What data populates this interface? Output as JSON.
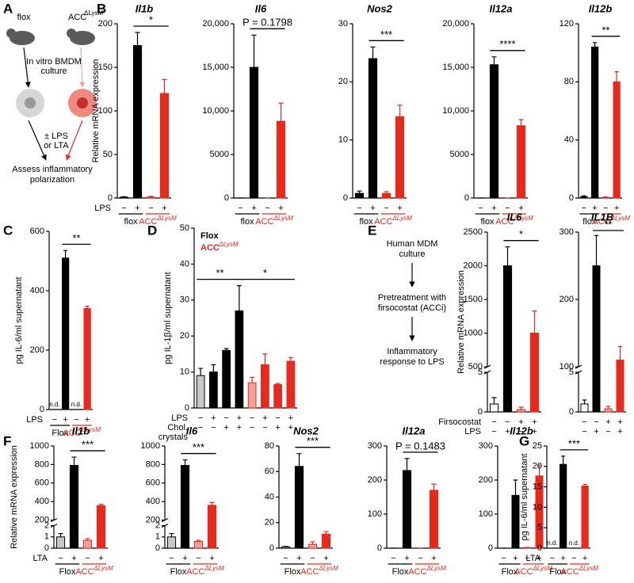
{
  "panel_labels": [
    "A",
    "B",
    "C",
    "D",
    "E",
    "F",
    "G"
  ],
  "diagram_a": {
    "left_label": "flox",
    "right_label": "ACC",
    "right_label_sup": "ΔLysM",
    "step1": [
      "In vitro BMDM",
      "culture"
    ],
    "step2": [
      "± LPS",
      "or LTA"
    ],
    "result": [
      "Assess inflammatory",
      "polarization"
    ]
  },
  "diagram_e": {
    "steps": [
      [
        "Human MDM",
        "culture"
      ],
      [
        "Pretreatment with",
        "firsocostat (ACCi)"
      ],
      [
        "Inflammatory",
        "response to LPS"
      ]
    ]
  },
  "chart_data": [
    {
      "type": "bar",
      "title": "Il1b",
      "ylabel": "Relative mRNA expression",
      "ylim": [
        0,
        200
      ],
      "yticks": [
        0,
        50,
        100,
        150,
        200
      ],
      "rows": [
        {
          "label": "LPS",
          "levels": [
            "−",
            "+",
            "−",
            "+"
          ]
        }
      ],
      "series": [
        {
          "name": "flox",
          "color": "#000000",
          "fills": [
            "#000000",
            "#000000"
          ],
          "values": [
            1,
            175
          ],
          "errors": [
            0.5,
            15
          ]
        },
        {
          "name": "ACC",
          "name_sup": "ΔLysM",
          "color": "#e8291c",
          "fills": [
            "#e8291c",
            "#e8291c"
          ],
          "values": [
            1,
            120
          ],
          "errors": [
            1,
            16
          ]
        }
      ],
      "annotations": [
        "*"
      ]
    },
    {
      "type": "bar",
      "title": "Il6",
      "ylim": [
        0,
        20000
      ],
      "yticks": [
        0,
        5000,
        {
          "value": 10000,
          "label": "10,000"
        },
        {
          "value": 15000,
          "label": "15,000"
        },
        {
          "value": 20000,
          "label": "20,000"
        }
      ],
      "rows": [
        {
          "levels": [
            "−",
            "+",
            "−",
            "+"
          ]
        }
      ],
      "series": [
        {
          "name": "flox",
          "color": "#000000",
          "fills": [
            "#000000",
            "#000000"
          ],
          "values": [
            0,
            15000
          ],
          "errors": [
            0,
            3700
          ]
        },
        {
          "name": "ACC",
          "name_sup": "ΔLysM",
          "color": "#e8291c",
          "fills": [
            "#e8291c",
            "#e8291c"
          ],
          "values": [
            0,
            8800
          ],
          "errors": [
            0,
            2100
          ]
        }
      ],
      "annotations": [
        "P = 0.1798"
      ]
    },
    {
      "type": "bar",
      "title": "Nos2",
      "ylim": [
        0,
        30
      ],
      "yticks": [
        0,
        10,
        20,
        30
      ],
      "rows": [
        {
          "levels": [
            "−",
            "+",
            "−",
            "+"
          ]
        }
      ],
      "series": [
        {
          "name": "flox",
          "color": "#000000",
          "fills": [
            "#000000",
            "#000000"
          ],
          "values": [
            0.8,
            24
          ],
          "errors": [
            0.4,
            2
          ]
        },
        {
          "name": "ACC",
          "name_sup": "ΔLysM",
          "color": "#e8291c",
          "fills": [
            "#e8291c",
            "#e8291c"
          ],
          "values": [
            0.8,
            14
          ],
          "errors": [
            0.3,
            2
          ]
        }
      ],
      "annotations": [
        "***"
      ]
    },
    {
      "type": "bar",
      "title": "Il12a",
      "ylim": [
        0,
        20000
      ],
      "yticks": [
        0,
        5000,
        {
          "value": 10000,
          "label": "10,000"
        },
        {
          "value": 15000,
          "label": "15,000"
        },
        {
          "value": 20000,
          "label": "20,000"
        }
      ],
      "rows": [
        {
          "levels": [
            "−",
            "+",
            "−",
            "+"
          ]
        }
      ],
      "series": [
        {
          "name": "flox",
          "color": "#000000",
          "fills": [
            "#000000",
            "#000000"
          ],
          "values": [
            0,
            15300
          ],
          "errors": [
            0,
            900
          ]
        },
        {
          "name": "ACC",
          "name_sup": "ΔLysM",
          "color": "#e8291c",
          "fills": [
            "#e8291c",
            "#e8291c"
          ],
          "values": [
            0,
            8300
          ],
          "errors": [
            0,
            700
          ]
        }
      ],
      "annotations": [
        "****"
      ]
    },
    {
      "type": "bar",
      "title": "Il12b",
      "ylim": [
        0,
        120
      ],
      "yticks": [
        0,
        40,
        80,
        120
      ],
      "rows": [
        {
          "levels": [
            "−",
            "+",
            "−",
            "+"
          ]
        }
      ],
      "series": [
        {
          "name": "flox",
          "color": "#000000",
          "fills": [
            "#000000",
            "#000000"
          ],
          "values": [
            1,
            104
          ],
          "errors": [
            0.5,
            3
          ]
        },
        {
          "name": "ACC",
          "name_sup": "ΔLysM",
          "color": "#e8291c",
          "fills": [
            "#e8291c",
            "#e8291c"
          ],
          "values": [
            0.5,
            80
          ],
          "errors": [
            0.3,
            7
          ]
        }
      ],
      "annotations": [
        "**"
      ]
    },
    {
      "type": "bar",
      "ylabel": "pg IL-6/ml supernatant",
      "ylim": [
        0,
        600
      ],
      "yticks": [
        0,
        200,
        400,
        600
      ],
      "rows": [
        {
          "label": "LPS",
          "levels": [
            "−",
            "+",
            "−",
            "+"
          ]
        }
      ],
      "series": [
        {
          "name": "Flox",
          "color": "#000000",
          "fills": [
            "#000000",
            "#000000"
          ],
          "values": [
            null,
            510
          ],
          "errors": [
            null,
            25
          ],
          "value_labels": [
            "n.d.",
            null
          ]
        },
        {
          "name": "ACC",
          "name_sup": "ΔLysM",
          "color": "#e8291c",
          "fills": [
            "#e8291c",
            "#e8291c"
          ],
          "values": [
            null,
            340
          ],
          "errors": [
            null,
            8
          ],
          "value_labels": [
            "n.d.",
            null
          ]
        }
      ],
      "annotations": [
        "**"
      ]
    },
    {
      "type": "bar",
      "ylabel": "pg IL-1β/ml supernatant",
      "ylim": [
        0,
        50
      ],
      "yticks": [
        0,
        10,
        20,
        30,
        40,
        50
      ],
      "legend": "upper left",
      "rows": [
        {
          "label": "LPS",
          "levels": [
            "−",
            "+",
            "−",
            "+",
            "−",
            "+",
            "−",
            "+"
          ]
        },
        {
          "label": [
            "Chol.",
            "crystals"
          ],
          "levels": [
            "−",
            "−",
            "+",
            "+",
            "−",
            "−",
            "+",
            "+"
          ]
        }
      ],
      "series": [
        {
          "name": "Flox",
          "color": "#000000",
          "fills": [
            "#c8c8c8",
            "#000000",
            "#000000",
            "#000000"
          ],
          "values": [
            9,
            10,
            16,
            27
          ],
          "errors": [
            2,
            2,
            0.5,
            7
          ]
        },
        {
          "name": "ACC",
          "name_sup": "ΔLysM",
          "color": "#e8291c",
          "fills": [
            "#f4a09a",
            "#e8291c",
            "#e8291c",
            "#e8291c"
          ],
          "values": [
            7,
            12,
            6.5,
            13
          ],
          "errors": [
            1.5,
            3,
            0.3,
            1
          ]
        }
      ],
      "annotations": [
        "**",
        "*"
      ]
    },
    {
      "type": "bar",
      "title": "IL6",
      "ylabel": "Relative mRNA expression",
      "axis_segments": [
        {
          "ylim": [
            0,
            5
          ],
          "yticks": [
            0,
            5
          ]
        },
        {
          "ylim": [
            500,
            2500
          ],
          "yticks": [
            500,
            1000,
            1500,
            2000,
            2500
          ]
        }
      ],
      "rows": [
        {
          "label": "Firsocostat",
          "levels": [
            "−",
            "−",
            "+",
            "+"
          ]
        },
        {
          "label": "LPS",
          "levels": [
            "−",
            "+",
            "−",
            "+"
          ]
        }
      ],
      "series": [
        {
          "color": "#000000",
          "fills": [
            "#ffffff",
            "#000000"
          ],
          "values": [
            1,
            2000
          ],
          "errors": [
            0.8,
            280
          ]
        },
        {
          "color": "#e8291c",
          "fills": [
            "#f4a09a",
            "#e8291c"
          ],
          "values": [
            0.3,
            1000
          ],
          "errors": [
            0.3,
            330
          ]
        }
      ],
      "annotations": [
        "*"
      ]
    },
    {
      "type": "bar",
      "title": "IL1B",
      "axis_segments": [
        {
          "ylim": [
            0,
            5
          ],
          "yticks": [
            0,
            5
          ]
        },
        {
          "ylim": [
            100,
            300
          ],
          "yticks": [
            100,
            200,
            300
          ]
        }
      ],
      "rows": [
        {
          "levels": [
            "−",
            "−",
            "+",
            "+"
          ]
        },
        {
          "levels": [
            "−",
            "+",
            "−",
            "+"
          ]
        }
      ],
      "series": [
        {
          "color": "#000000",
          "fills": [
            "#ffffff",
            "#000000"
          ],
          "values": [
            1,
            250
          ],
          "errors": [
            0.5,
            45
          ]
        },
        {
          "color": "#e8291c",
          "fills": [
            "#f4a09a",
            "#e8291c"
          ],
          "values": [
            0.4,
            110
          ],
          "errors": [
            0.3,
            20
          ]
        }
      ],
      "annotations": [
        "**"
      ]
    },
    {
      "type": "bar",
      "title": "Il1b",
      "ylabel": "Relative mRNA expression",
      "axis_segments": [
        {
          "ylim": [
            0,
            2
          ],
          "yticks": [
            0,
            1,
            2
          ]
        },
        {
          "ylim": [
            200,
            1000
          ],
          "yticks": [
            200,
            400,
            600,
            800,
            1000
          ]
        }
      ],
      "rows": [
        {
          "label": "LTA",
          "levels": [
            "−",
            "+",
            "−",
            "+"
          ]
        }
      ],
      "series": [
        {
          "name": "Flox",
          "color": "#000000",
          "fills": [
            "#c8c8c8",
            "#000000"
          ],
          "values": [
            1,
            790
          ],
          "errors": [
            0.3,
            90
          ]
        },
        {
          "name": "ACC",
          "name_sup": "ΔLysM",
          "color": "#e8291c",
          "fills": [
            "#f4a09a",
            "#e8291c"
          ],
          "values": [
            0.7,
            355
          ],
          "errors": [
            0.15,
            15
          ]
        }
      ],
      "annotations": [
        "***"
      ]
    },
    {
      "type": "bar",
      "title": "Il6",
      "axis_segments": [
        {
          "ylim": [
            0,
            2
          ],
          "yticks": [
            0,
            1,
            2
          ]
        },
        {
          "ylim": [
            200,
            1000
          ],
          "yticks": [
            200,
            400,
            600,
            800,
            1000
          ]
        }
      ],
      "rows": [
        {
          "levels": [
            "−",
            "+",
            "−",
            "+"
          ]
        }
      ],
      "series": [
        {
          "name": "Flox",
          "color": "#000000",
          "fills": [
            "#c8c8c8",
            "#000000"
          ],
          "values": [
            1,
            790
          ],
          "errors": [
            0.3,
            60
          ]
        },
        {
          "name": "ACC",
          "name_sup": "ΔLysM",
          "color": "#e8291c",
          "fills": [
            "#f4a09a",
            "#e8291c"
          ],
          "values": [
            0.6,
            360
          ],
          "errors": [
            0.1,
            30
          ]
        }
      ],
      "annotations": [
        "***"
      ]
    },
    {
      "type": "bar",
      "title": "Nos2",
      "ylim": [
        0,
        80
      ],
      "yticks": [
        0,
        20,
        40,
        60,
        80
      ],
      "rows": [
        {
          "levels": [
            "−",
            "+",
            "−",
            "+"
          ]
        }
      ],
      "series": [
        {
          "name": "Flox",
          "color": "#000000",
          "fills": [
            "#c8c8c8",
            "#000000"
          ],
          "values": [
            1,
            64
          ],
          "errors": [
            0.3,
            10
          ]
        },
        {
          "name": "ACC",
          "name_sup": "ΔLysM",
          "color": "#e8291c",
          "fills": [
            "#f4a09a",
            "#e8291c"
          ],
          "values": [
            3,
            11
          ],
          "errors": [
            2,
            2
          ]
        }
      ],
      "annotations": [
        "***"
      ]
    },
    {
      "type": "bar",
      "title": "Il12a",
      "ylim": [
        0,
        300
      ],
      "yticks": [
        0,
        100,
        200,
        300
      ],
      "rows": [
        {
          "levels": [
            "−",
            "+",
            "−",
            "+"
          ]
        }
      ],
      "series": [
        {
          "name": "Flox",
          "color": "#000000",
          "fills": [
            "#c8c8c8",
            "#000000"
          ],
          "values": [
            0,
            228
          ],
          "errors": [
            0,
            35
          ]
        },
        {
          "name": "ACC",
          "name_sup": "ΔLysM",
          "color": "#e8291c",
          "fills": [
            "#f4a09a",
            "#e8291c"
          ],
          "values": [
            0,
            170
          ],
          "errors": [
            0,
            18
          ]
        }
      ],
      "annotations": [
        "P = 0.1483"
      ]
    },
    {
      "type": "bar",
      "title": "Il12b",
      "ylim": [
        0,
        300
      ],
      "yticks": [
        0,
        100,
        200,
        300
      ],
      "rows": [
        {
          "levels": [
            "−",
            "+",
            "−",
            "+"
          ]
        }
      ],
      "series": [
        {
          "name": "Flox",
          "color": "#000000",
          "fills": [
            "#c8c8c8",
            "#000000"
          ],
          "values": [
            0,
            155
          ],
          "errors": [
            0,
            45
          ]
        },
        {
          "name": "ACC",
          "name_sup": "ΔLysM",
          "color": "#e8291c",
          "fills": [
            "#f4a09a",
            "#e8291c"
          ],
          "values": [
            2,
            212
          ],
          "errors": [
            0,
            32
          ]
        }
      ],
      "annotations": []
    },
    {
      "type": "bar",
      "ylabel": "pg IL-6/ml supernatant",
      "ylim": [
        0,
        25
      ],
      "yticks": [
        0,
        5,
        10,
        15,
        20,
        25
      ],
      "rows": [
        {
          "label": "LTA",
          "levels": [
            "−",
            "+",
            "−",
            "+"
          ]
        }
      ],
      "series": [
        {
          "name": "Flox",
          "color": "#000000",
          "fills": [
            "#000000",
            "#000000"
          ],
          "values": [
            null,
            20.5
          ],
          "errors": [
            null,
            2
          ],
          "value_labels": [
            "n.d.",
            null
          ]
        },
        {
          "name": "ACC",
          "name_sup": "ΔLysM",
          "color": "#e8291c",
          "fills": [
            "#e8291c",
            "#e8291c"
          ],
          "values": [
            null,
            15.2
          ],
          "errors": [
            null,
            0.4
          ],
          "value_labels": [
            "n.d.",
            null
          ]
        }
      ],
      "annotations": [
        "***"
      ]
    }
  ]
}
